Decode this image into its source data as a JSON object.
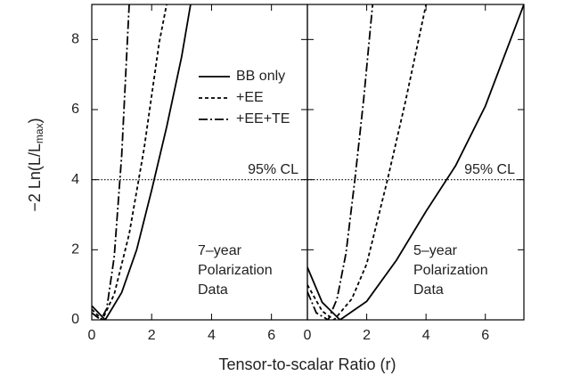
{
  "x_label": "Tensor-to-scalar Ratio (r)",
  "chart_data": [
    {
      "type": "line",
      "y_label": "−2 Ln(L/L",
      "y_label_sub": "max",
      "y_label_end": ")",
      "xlim": [
        0,
        7.2
      ],
      "xticks": [
        0,
        2,
        4,
        6
      ],
      "ylim": [
        0,
        9
      ],
      "yticks": [
        0,
        2,
        4,
        6,
        8
      ],
      "show_ytick_labels": true,
      "hline": 4,
      "hline_label": "95% CL",
      "panel_label": [
        "7–year",
        "Polarization",
        "Data"
      ],
      "legend": true,
      "series": [
        {
          "name": "BB only",
          "color": "#000000",
          "dash": "solid",
          "x": [
            0,
            0.45,
            1,
            1.5,
            2,
            2.5,
            3,
            3.3
          ],
          "values": [
            0.4,
            0,
            0.78,
            2.0,
            3.7,
            5.5,
            7.5,
            9.0
          ]
        },
        {
          "name": "+EE",
          "color": "#000000",
          "dash": "dashed",
          "x": [
            0,
            0.35,
            0.75,
            1.25,
            1.75,
            2.25,
            2.5
          ],
          "values": [
            0.3,
            0,
            0.73,
            2.45,
            4.9,
            7.9,
            9.0
          ]
        },
        {
          "name": "+EE+TE",
          "color": "#000000",
          "dash": "dashdot",
          "x": [
            0,
            0.3,
            0.5,
            0.75,
            1,
            1.25
          ],
          "values": [
            0.2,
            0,
            0.32,
            1.8,
            4.7,
            9.0
          ]
        }
      ]
    },
    {
      "type": "line",
      "xlim": [
        0,
        7.3
      ],
      "xticks": [
        0,
        2,
        4,
        6
      ],
      "ylim": [
        0,
        9
      ],
      "yticks": [
        0,
        2,
        4,
        6,
        8
      ],
      "show_ytick_labels": false,
      "hline": 4,
      "hline_label": "95% CL",
      "panel_label": [
        "5–year",
        "Polarization",
        "Data"
      ],
      "legend": false,
      "series": [
        {
          "name": "BB only",
          "color": "#000000",
          "dash": "solid",
          "x": [
            0,
            0.5,
            1.1,
            2,
            3,
            4,
            5,
            6,
            7.3
          ],
          "values": [
            1.5,
            0.5,
            0,
            0.53,
            1.7,
            3.1,
            4.4,
            6.1,
            9.0
          ]
        },
        {
          "name": "+EE",
          "color": "#000000",
          "dash": "dashed",
          "x": [
            0,
            0.5,
            0.9,
            1.5,
            2,
            2.7,
            3.3,
            4.0
          ],
          "values": [
            1.0,
            0.25,
            0,
            0.6,
            1.6,
            4.0,
            6.2,
            9.0
          ]
        },
        {
          "name": "+EE+TE",
          "color": "#000000",
          "dash": "dashdot",
          "x": [
            0,
            0.3,
            0.7,
            1,
            1.3,
            1.6,
            1.9,
            2.2
          ],
          "values": [
            0.8,
            0.2,
            0,
            0.6,
            1.9,
            4.0,
            6.3,
            9.0
          ]
        }
      ]
    }
  ]
}
